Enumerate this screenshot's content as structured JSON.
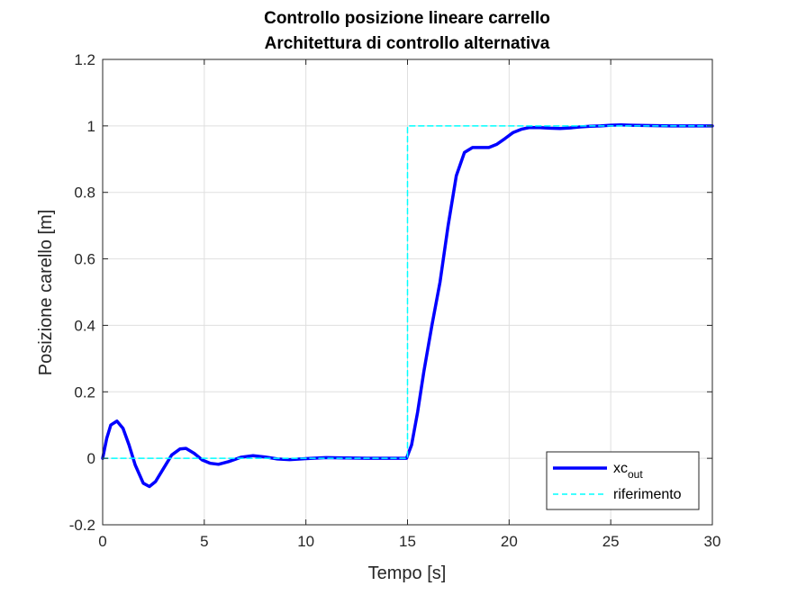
{
  "chart_data": {
    "type": "line",
    "title": [
      "Controllo posizione lineare carrello",
      "Architettura di controllo alternativa"
    ],
    "xlabel": "Tempo [s]",
    "ylabel": "Posizione carello [m]",
    "xlim": [
      0,
      30
    ],
    "ylim": [
      -0.2,
      1.2
    ],
    "xticks": [
      0,
      5,
      10,
      15,
      20,
      25,
      30
    ],
    "xtick_labels": [
      "0",
      "5",
      "10",
      "15",
      "20",
      "25",
      "30"
    ],
    "yticks": [
      -0.2,
      0,
      0.2,
      0.4,
      0.6,
      0.8,
      1,
      1.2
    ],
    "ytick_labels": [
      "-0.2",
      "0",
      "0.2",
      "0.4",
      "0.6",
      "0.8",
      "1",
      "1.2"
    ],
    "grid": true,
    "legend_position": "bottom-right",
    "series": [
      {
        "name": "xc",
        "name_subscript": "out",
        "color": "#0000ff",
        "style": "solid",
        "x": [
          0,
          0.2,
          0.4,
          0.7,
          1.0,
          1.3,
          1.6,
          2.0,
          2.3,
          2.6,
          3.0,
          3.4,
          3.8,
          4.1,
          4.5,
          4.9,
          5.3,
          5.7,
          6.2,
          6.8,
          7.4,
          8.0,
          8.6,
          9.2,
          10.0,
          11.0,
          12.0,
          13.0,
          14.0,
          14.95,
          15.2,
          15.5,
          15.8,
          16.2,
          16.6,
          17.0,
          17.4,
          17.8,
          18.2,
          18.6,
          19.0,
          19.4,
          19.8,
          20.2,
          20.6,
          21.0,
          21.5,
          22.0,
          22.5,
          23.0,
          23.5,
          24.0,
          24.5,
          25.0,
          25.5,
          26.0,
          27.0,
          28.0,
          29.0,
          30.0
        ],
        "y": [
          0,
          0.06,
          0.1,
          0.112,
          0.09,
          0.04,
          -0.02,
          -0.075,
          -0.085,
          -0.07,
          -0.03,
          0.01,
          0.028,
          0.03,
          0.015,
          -0.005,
          -0.015,
          -0.018,
          -0.01,
          0.003,
          0.008,
          0.004,
          -0.002,
          -0.004,
          -0.001,
          0.002,
          0.001,
          0,
          0,
          0,
          0.04,
          0.14,
          0.26,
          0.4,
          0.53,
          0.7,
          0.85,
          0.92,
          0.935,
          0.935,
          0.935,
          0.945,
          0.962,
          0.98,
          0.99,
          0.995,
          0.995,
          0.993,
          0.992,
          0.994,
          0.997,
          0.999,
          1.0,
          1.002,
          1.003,
          1.002,
          1.001,
          1.0,
          1.0,
          1.0
        ]
      },
      {
        "name": "riferimento",
        "color": "#00ffff",
        "style": "dashed",
        "x": [
          0,
          15,
          15,
          30
        ],
        "y": [
          0,
          0,
          1,
          1
        ]
      }
    ]
  }
}
